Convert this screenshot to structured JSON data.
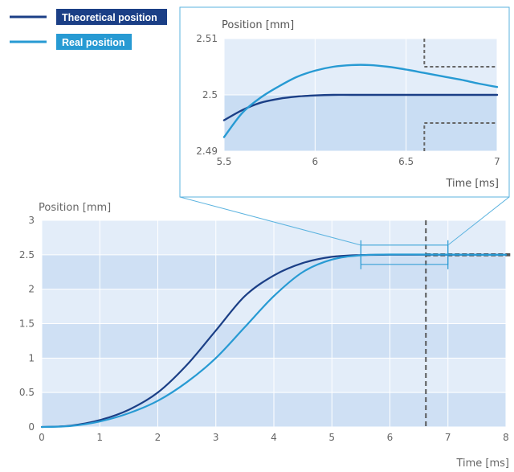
{
  "legend": {
    "theoretical_label": "Theoretical position",
    "real_label": "Real position",
    "theoretical_color": "#1b3f86",
    "real_color": "#279ad3"
  },
  "chart_data": [
    {
      "id": "main",
      "type": "line",
      "title": "",
      "ylabel": "Position [mm]",
      "xlabel": "Time [ms]",
      "xlim": [
        0,
        8
      ],
      "ylim": [
        0,
        3
      ],
      "x_ticks": [
        "0",
        "1",
        "2",
        "3",
        "4",
        "5",
        "6",
        "7",
        "8"
      ],
      "y_ticks": [
        "0",
        "0.5",
        "1",
        "1.5",
        "2",
        "2.5",
        "3"
      ],
      "grid": true,
      "legend_position": "top-left",
      "series": [
        {
          "name": "Theoretical position",
          "color": "#1b3f86",
          "x": [
            0,
            0.5,
            1,
            1.5,
            2,
            2.5,
            3,
            3.5,
            4,
            4.5,
            5,
            5.5,
            6,
            6.5,
            7,
            7.5,
            8
          ],
          "y": [
            0,
            0.02,
            0.1,
            0.25,
            0.5,
            0.9,
            1.4,
            1.9,
            2.2,
            2.38,
            2.47,
            2.496,
            2.5,
            2.5,
            2.5,
            2.5,
            2.5
          ]
        },
        {
          "name": "Real position",
          "color": "#279ad3",
          "x": [
            0,
            0.5,
            1,
            1.5,
            2,
            2.5,
            3,
            3.5,
            4,
            4.5,
            5,
            5.5,
            6,
            6.5,
            7,
            7.5,
            8
          ],
          "y": [
            0,
            0.015,
            0.08,
            0.2,
            0.38,
            0.65,
            1.0,
            1.45,
            1.9,
            2.25,
            2.43,
            2.492,
            2.504,
            2.504,
            2.502,
            2.5,
            2.5
          ]
        }
      ],
      "annotations": {
        "vertical_dashed_x": 6.62,
        "tolerance_band": [
          2.49,
          2.51
        ],
        "zoom_window_x": [
          5.5,
          7.0
        ]
      }
    },
    {
      "id": "inset",
      "type": "line",
      "title": "",
      "ylabel": "Position [mm]",
      "xlabel": "Time [ms]",
      "xlim": [
        5.5,
        7
      ],
      "ylim": [
        2.49,
        2.51
      ],
      "x_ticks": [
        "5.5",
        "6",
        "6.5",
        "7"
      ],
      "y_ticks": [
        "2.49",
        "2.5",
        "2.51"
      ],
      "grid": true,
      "series": [
        {
          "name": "Theoretical position",
          "color": "#1b3f86",
          "x": [
            5.5,
            5.6,
            5.7,
            5.8,
            5.9,
            6.0,
            6.1,
            6.2,
            6.4,
            6.6,
            6.8,
            7.0
          ],
          "y": [
            2.4955,
            2.4973,
            2.4986,
            2.4993,
            2.4997,
            2.4999,
            2.5,
            2.5,
            2.5,
            2.5,
            2.5,
            2.5
          ]
        },
        {
          "name": "Real position",
          "color": "#279ad3",
          "x": [
            5.5,
            5.6,
            5.7,
            5.8,
            5.9,
            6.0,
            6.1,
            6.2,
            6.3,
            6.4,
            6.5,
            6.6,
            6.7,
            6.8,
            6.9,
            7.0
          ],
          "y": [
            2.4925,
            2.4968,
            2.4995,
            2.5015,
            2.5032,
            2.5043,
            2.505,
            2.5053,
            2.5053,
            2.505,
            2.5045,
            2.5039,
            2.5033,
            2.5027,
            2.502,
            2.5014
          ]
        }
      ],
      "annotations": {
        "vertical_dashed_x": 6.6,
        "tolerance_band": [
          2.495,
          2.505
        ]
      }
    }
  ]
}
